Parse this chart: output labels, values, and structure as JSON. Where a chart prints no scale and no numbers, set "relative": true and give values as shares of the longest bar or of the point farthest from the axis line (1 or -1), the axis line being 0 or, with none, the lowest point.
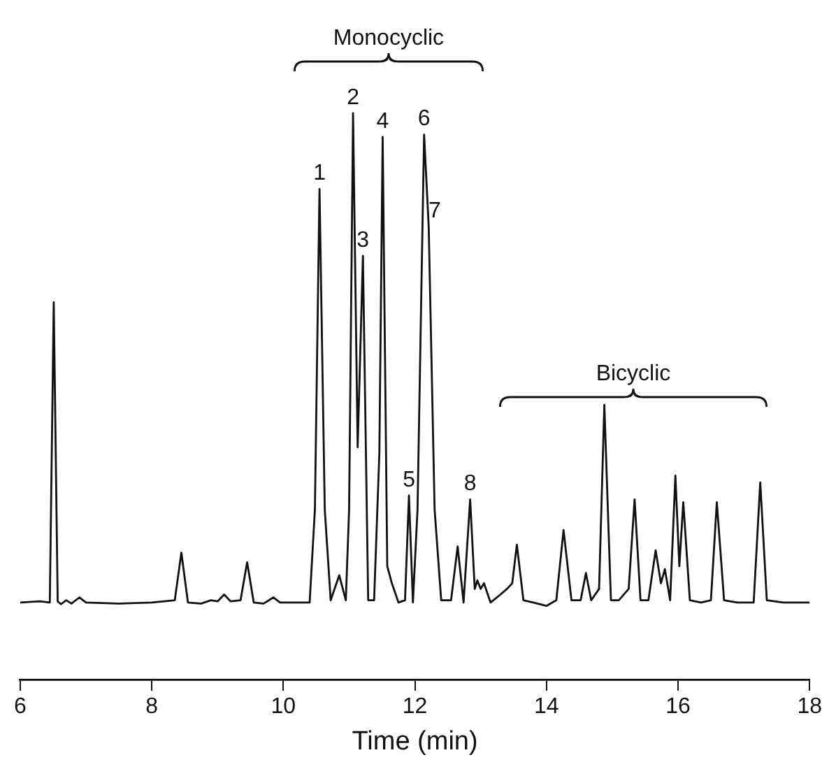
{
  "chart_data": {
    "type": "line",
    "relative": true,
    "xlabel": "Time (min)",
    "xlim": [
      6,
      18
    ],
    "xticks": [
      6,
      8,
      10,
      12,
      14,
      16,
      18
    ],
    "grid": false,
    "legend": false,
    "marker": "none",
    "line_style": "solid",
    "series": [
      {
        "color": "#111111",
        "x": [
          6.0,
          6.3,
          6.45,
          6.51,
          6.57,
          6.62,
          6.7,
          6.78,
          6.9,
          7.0,
          7.5,
          8.0,
          8.35,
          8.45,
          8.55,
          8.75,
          8.9,
          9.0,
          9.1,
          9.2,
          9.35,
          9.45,
          9.55,
          9.7,
          9.85,
          9.95,
          10.4,
          10.48,
          10.55,
          10.63,
          10.72,
          10.85,
          10.95,
          11.0,
          11.06,
          11.13,
          11.21,
          11.29,
          11.38,
          11.46,
          11.51,
          11.58,
          11.65,
          11.75,
          11.85,
          11.91,
          11.97,
          12.04,
          12.14,
          12.21,
          12.3,
          12.4,
          12.55,
          12.65,
          12.74,
          12.84,
          12.91,
          12.95,
          13.0,
          13.05,
          13.15,
          13.3,
          13.4,
          13.48,
          13.55,
          13.65,
          13.8,
          14.0,
          14.15,
          14.26,
          14.38,
          14.52,
          14.6,
          14.68,
          14.8,
          14.88,
          14.98,
          15.1,
          15.25,
          15.34,
          15.43,
          15.55,
          15.66,
          15.74,
          15.8,
          15.88,
          15.96,
          16.02,
          16.08,
          16.18,
          16.35,
          16.5,
          16.59,
          16.7,
          16.9,
          17.15,
          17.25,
          17.35,
          17.6,
          18.0
        ],
        "values": [
          0.136,
          0.138,
          0.136,
          0.666,
          0.138,
          0.133,
          0.14,
          0.134,
          0.145,
          0.136,
          0.134,
          0.136,
          0.14,
          0.224,
          0.136,
          0.134,
          0.14,
          0.138,
          0.15,
          0.138,
          0.14,
          0.207,
          0.136,
          0.134,
          0.145,
          0.136,
          0.136,
          0.3,
          0.866,
          0.3,
          0.14,
          0.184,
          0.14,
          0.3,
          1.0,
          0.41,
          0.748,
          0.14,
          0.14,
          0.4,
          0.958,
          0.2,
          0.17,
          0.136,
          0.14,
          0.325,
          0.136,
          0.3,
          0.962,
          0.8,
          0.3,
          0.14,
          0.14,
          0.235,
          0.136,
          0.318,
          0.16,
          0.175,
          0.16,
          0.17,
          0.136,
          0.15,
          0.16,
          0.17,
          0.238,
          0.14,
          0.136,
          0.13,
          0.14,
          0.264,
          0.14,
          0.14,
          0.188,
          0.14,
          0.16,
          0.485,
          0.14,
          0.14,
          0.16,
          0.318,
          0.14,
          0.14,
          0.228,
          0.17,
          0.195,
          0.14,
          0.36,
          0.2,
          0.313,
          0.14,
          0.136,
          0.14,
          0.313,
          0.14,
          0.136,
          0.136,
          0.348,
          0.14,
          0.136,
          0.136
        ]
      }
    ],
    "annotations": [
      {
        "text": "1",
        "x": 10.55,
        "y": 0.866
      },
      {
        "text": "2",
        "x": 11.06,
        "y": 1.0
      },
      {
        "text": "3",
        "x": 11.21,
        "y": 0.748
      },
      {
        "text": "4",
        "x": 11.51,
        "y": 0.958
      },
      {
        "text": "5",
        "x": 11.91,
        "y": 0.325
      },
      {
        "text": "6",
        "x": 12.14,
        "y": 0.962
      },
      {
        "text": "7",
        "x": 12.3,
        "y": 0.8
      },
      {
        "text": "8",
        "x": 12.84,
        "y": 0.318
      },
      "Monocyclic",
      "Bicyclic"
    ]
  }
}
